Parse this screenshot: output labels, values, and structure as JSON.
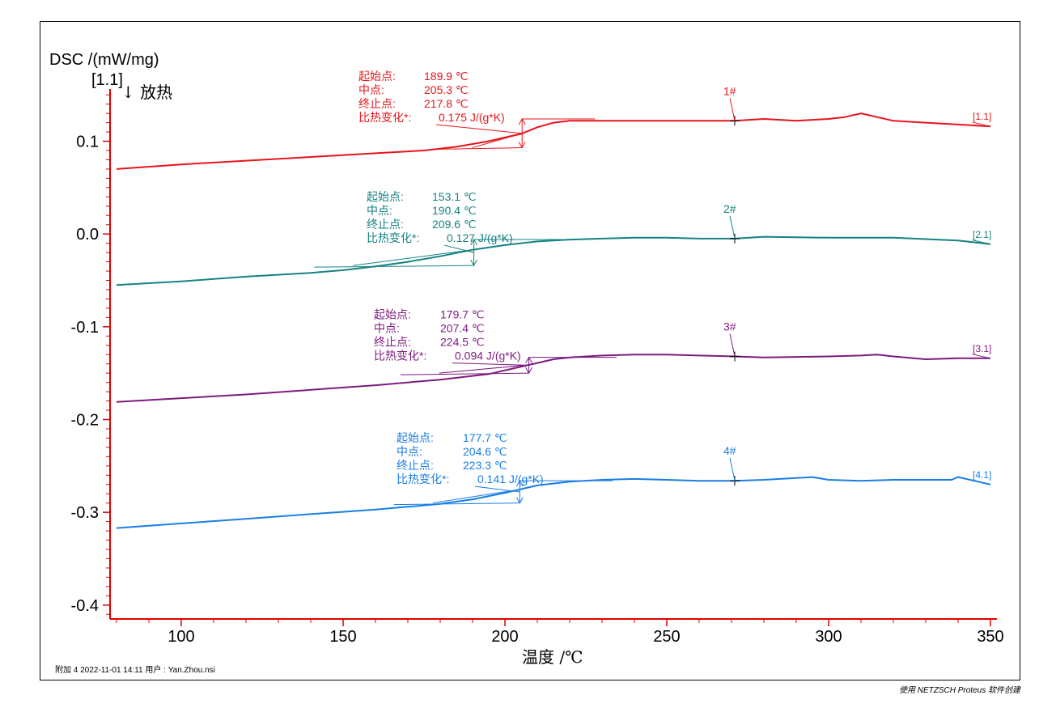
{
  "chart_data": {
    "type": "line",
    "title": "",
    "ylabel": "DSC /(mW/mg)",
    "xlabel": "温度 /℃",
    "segment_label": "[1.1]",
    "exo_label": "↓ 放热",
    "xlim": [
      78,
      352
    ],
    "ylim": [
      -0.415,
      0.165
    ],
    "x_ticks": [
      100,
      150,
      200,
      250,
      300,
      350
    ],
    "x_tick_labels": [
      "100",
      "150",
      "200",
      "250",
      "300",
      "350"
    ],
    "y_ticks": [
      0.1,
      0.0,
      -0.1,
      -0.2,
      -0.3,
      -0.4
    ],
    "y_tick_labels": [
      "0.1",
      "0.0",
      "-0.1",
      "-0.2",
      "-0.3",
      "-0.4"
    ],
    "grid": false,
    "axis_color": "#e00000",
    "series": [
      {
        "name": "1#",
        "tag": "[1.1]",
        "color": "#e8141b",
        "x": [
          80,
          100,
          120,
          140,
          160,
          175,
          185,
          190,
          195,
          200,
          205,
          210,
          215,
          220,
          225,
          240,
          260,
          271,
          280,
          290,
          300,
          305,
          310,
          315,
          320,
          330,
          340,
          350
        ],
        "y": [
          0.07,
          0.075,
          0.079,
          0.083,
          0.087,
          0.09,
          0.094,
          0.097,
          0.1,
          0.104,
          0.108,
          0.115,
          0.12,
          0.122,
          0.122,
          0.122,
          0.122,
          0.122,
          0.124,
          0.122,
          0.124,
          0.126,
          0.13,
          0.126,
          0.122,
          0.12,
          0.118,
          0.116
        ],
        "marker_x": 271,
        "annotation": {
          "labels": [
            "起始点:",
            "中点:",
            "终止点:",
            "比热变化*:"
          ],
          "values": [
            "189.9 ℃",
            "205.3 ℃",
            "217.8 ℃",
            "0.175 J/(g*K)"
          ],
          "onset_x": 189.9,
          "mid_x": 205.3,
          "end_x": 217.8,
          "step_low": 0.093,
          "step_high": 0.124
        }
      },
      {
        "name": "2#",
        "tag": "[2.1]",
        "color": "#168282",
        "x": [
          80,
          100,
          120,
          140,
          150,
          160,
          170,
          180,
          190,
          200,
          210,
          220,
          230,
          240,
          250,
          260,
          271,
          280,
          300,
          320,
          340,
          350
        ],
        "y": [
          -0.055,
          -0.051,
          -0.046,
          -0.042,
          -0.039,
          -0.035,
          -0.03,
          -0.024,
          -0.017,
          -0.012,
          -0.008,
          -0.006,
          -0.005,
          -0.004,
          -0.004,
          -0.005,
          -0.005,
          -0.003,
          -0.004,
          -0.004,
          -0.007,
          -0.011
        ],
        "marker_x": 271,
        "annotation": {
          "labels": [
            "起始点:",
            "中点:",
            "终止点:",
            "比热变化*:"
          ],
          "values": [
            "153.1 ℃",
            "190.4 ℃",
            "209.6 ℃",
            "0.127 J/(g*K)"
          ],
          "onset_x": 153.1,
          "mid_x": 190.4,
          "end_x": 209.6,
          "step_low": -0.034,
          "step_high": -0.006
        }
      },
      {
        "name": "3#",
        "tag": "[3.1]",
        "color": "#7d1a7d",
        "x": [
          80,
          100,
          120,
          140,
          160,
          180,
          195,
          205,
          210,
          215,
          220,
          230,
          240,
          250,
          260,
          271,
          280,
          300,
          310,
          315,
          320,
          330,
          340,
          350
        ],
        "y": [
          -0.181,
          -0.177,
          -0.173,
          -0.168,
          -0.163,
          -0.157,
          -0.151,
          -0.143,
          -0.139,
          -0.135,
          -0.133,
          -0.131,
          -0.13,
          -0.13,
          -0.131,
          -0.132,
          -0.133,
          -0.132,
          -0.131,
          -0.13,
          -0.132,
          -0.135,
          -0.134,
          -0.134
        ],
        "marker_x": 271,
        "annotation": {
          "labels": [
            "起始点:",
            "中点:",
            "终止点:",
            "比热变化*:"
          ],
          "values": [
            "179.7 ℃",
            "207.4 ℃",
            "224.5 ℃",
            "0.094 J/(g*K)"
          ],
          "onset_x": 179.7,
          "mid_x": 207.4,
          "end_x": 224.5,
          "step_low": -0.15,
          "step_high": -0.133
        }
      },
      {
        "name": "4#",
        "tag": "[4.1]",
        "color": "#1a7ee6",
        "x": [
          80,
          100,
          120,
          140,
          160,
          170,
          180,
          190,
          200,
          205,
          210,
          220,
          230,
          240,
          250,
          260,
          271,
          280,
          290,
          295,
          300,
          310,
          320,
          330,
          338,
          340,
          345,
          350
        ],
        "y": [
          -0.317,
          -0.312,
          -0.307,
          -0.302,
          -0.297,
          -0.294,
          -0.291,
          -0.286,
          -0.279,
          -0.275,
          -0.271,
          -0.267,
          -0.265,
          -0.264,
          -0.265,
          -0.266,
          -0.266,
          -0.265,
          -0.263,
          -0.262,
          -0.265,
          -0.266,
          -0.265,
          -0.265,
          -0.265,
          -0.262,
          -0.266,
          -0.27
        ],
        "marker_x": 271,
        "annotation": {
          "labels": [
            "起始点:",
            "中点:",
            "终止点:",
            "比热变化*:"
          ],
          "values": [
            "177.7 ℃",
            "204.6 ℃",
            "223.3 ℃",
            "0.141 J/(g*K)"
          ],
          "onset_x": 177.7,
          "mid_x": 204.6,
          "end_x": 223.3,
          "step_low": -0.29,
          "step_high": -0.266
        }
      }
    ]
  },
  "footer": "附加 4    2022-11-01 14:11    用户 : Yan.Zhou.nsi",
  "credit": "使用 NETZSCH Proteus 软件创建"
}
